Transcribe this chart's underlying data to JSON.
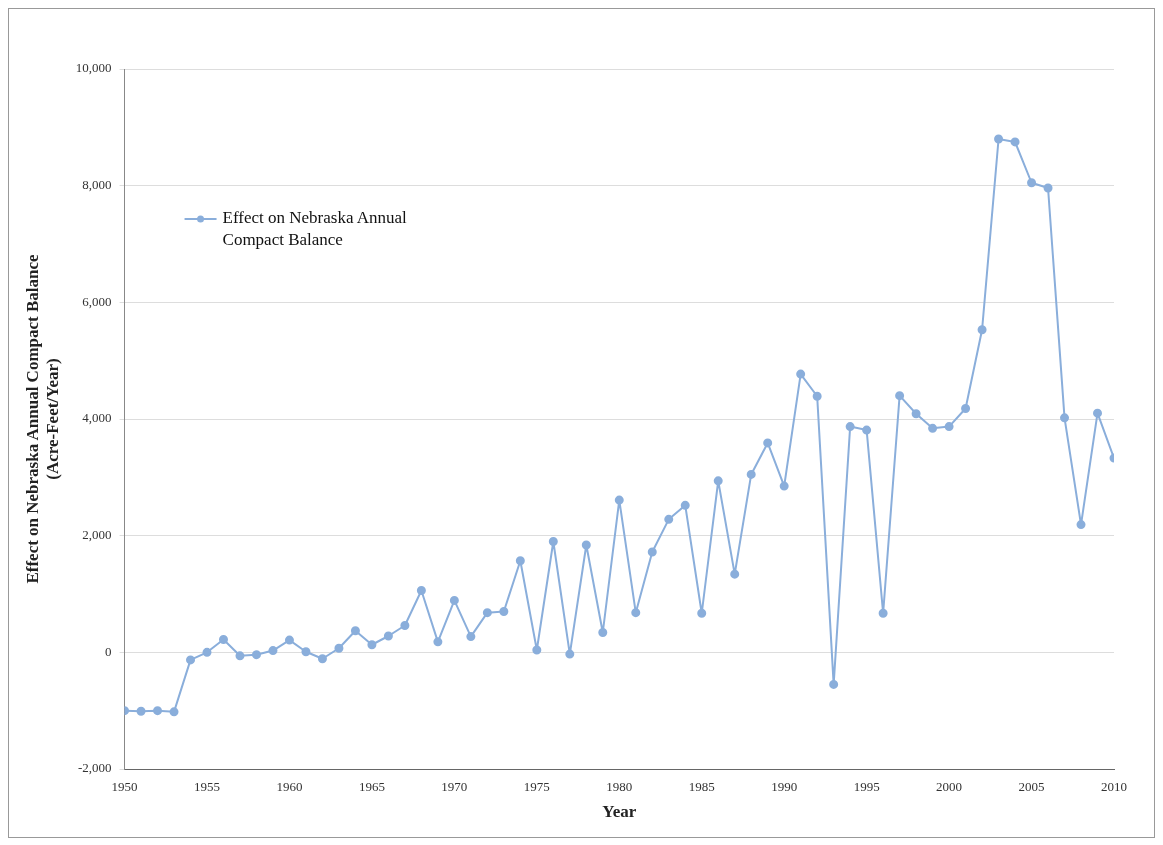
{
  "chart_data": {
    "type": "line",
    "xlabel": "Year",
    "ylabel": "Effect on Nebraska Annual Compact Balance\n(Acre-Feet/Year)",
    "x": [
      1950,
      1951,
      1952,
      1953,
      1954,
      1955,
      1956,
      1957,
      1958,
      1959,
      1960,
      1961,
      1962,
      1963,
      1964,
      1965,
      1966,
      1967,
      1968,
      1969,
      1970,
      1971,
      1972,
      1973,
      1974,
      1975,
      1976,
      1977,
      1978,
      1979,
      1980,
      1981,
      1982,
      1983,
      1984,
      1985,
      1986,
      1987,
      1988,
      1989,
      1990,
      1991,
      1992,
      1993,
      1994,
      1995,
      1996,
      1997,
      1998,
      1999,
      2000,
      2001,
      2002,
      2003,
      2004,
      2005,
      2006,
      2007,
      2008,
      2009,
      2010
    ],
    "series": [
      {
        "name": "Effect on Nebraska Annual Compact Balance",
        "color": "#8aaedb",
        "values": [
          -1000,
          -1010,
          -1000,
          -1020,
          -130,
          0,
          220,
          -60,
          -40,
          30,
          210,
          10,
          -110,
          70,
          370,
          130,
          280,
          460,
          1060,
          180,
          890,
          270,
          680,
          700,
          1570,
          40,
          1900,
          -30,
          1840,
          340,
          2610,
          680,
          1720,
          2280,
          2520,
          670,
          2940,
          1340,
          3050,
          3590,
          2850,
          4770,
          4390,
          -550,
          3870,
          3810,
          670,
          4400,
          4090,
          3840,
          3870,
          4180,
          5530,
          8800,
          8750,
          8050,
          7960,
          4020,
          2190,
          4100,
          3330
        ]
      }
    ],
    "xlim": [
      1950,
      2010
    ],
    "xticks": [
      1950,
      1955,
      1960,
      1965,
      1970,
      1975,
      1980,
      1985,
      1990,
      1995,
      2000,
      2005,
      2010
    ],
    "ylim": [
      -2000,
      10000
    ],
    "yticks": [
      {
        "value": -2000,
        "label": "-2,000"
      },
      0,
      {
        "value": 2000,
        "label": "2,000"
      },
      {
        "value": 4000,
        "label": "4,000"
      },
      {
        "value": 6000,
        "label": "6,000"
      },
      {
        "value": 8000,
        "label": "8,000"
      },
      {
        "value": 10000,
        "label": "10,000"
      }
    ],
    "grid": "y",
    "legend": "top left",
    "marker": "circle",
    "line_style": "solid"
  }
}
